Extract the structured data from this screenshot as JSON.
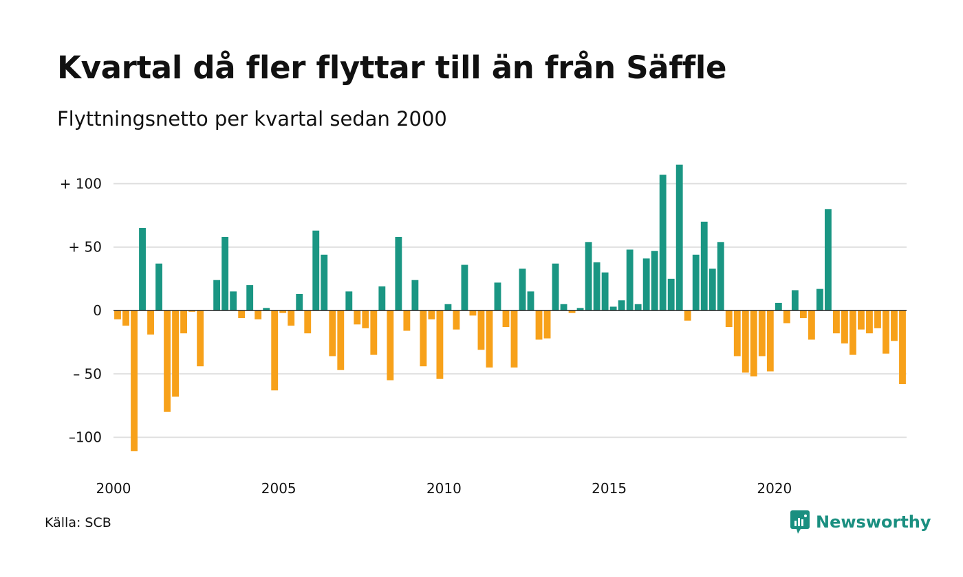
{
  "chart_data": {
    "type": "bar",
    "title": "Kvartal då fler flyttar till än från Säffle",
    "subtitle": "Flyttningsnetto per kvartal sedan 2000",
    "xlabel": "",
    "ylabel": "",
    "x_start": 2000,
    "x_period": "quarter",
    "xlim": [
      2000,
      2024
    ],
    "ylim": [
      -125,
      117
    ],
    "x_ticks": [
      2000,
      2005,
      2010,
      2015,
      2020
    ],
    "x_tick_labels": [
      "2000",
      "2005",
      "2010",
      "2015",
      "2020"
    ],
    "y_ticks": [
      100,
      50,
      0,
      -50,
      -100
    ],
    "y_tick_labels": [
      "+ 100",
      "+  50",
      "0",
      "– 50",
      "–100"
    ],
    "grid": true,
    "colors": {
      "positive": "#1a9683",
      "negative": "#f7a11a",
      "grid": "#dddddd",
      "zero_line": "#222222"
    },
    "values": [
      -7,
      -12,
      -111,
      65,
      -19,
      37,
      -80,
      -68,
      -18,
      -1,
      -44,
      0,
      24,
      58,
      15,
      -6,
      20,
      -7,
      2,
      -63,
      -2,
      -12,
      13,
      -18,
      63,
      44,
      -36,
      -47,
      15,
      -11,
      -14,
      -35,
      19,
      -55,
      58,
      -16,
      24,
      -44,
      -7,
      -54,
      5,
      -15,
      36,
      -4,
      -31,
      -45,
      22,
      -13,
      -45,
      33,
      15,
      -23,
      -22,
      37,
      5,
      -2,
      2,
      54,
      38,
      30,
      3,
      8,
      48,
      5,
      41,
      47,
      107,
      25,
      115,
      -8,
      44,
      70,
      33,
      54,
      -13,
      -36,
      -49,
      -52,
      -36,
      -48,
      6,
      -10,
      16,
      -6,
      -23,
      17,
      80,
      -18,
      -26,
      -35,
      -15,
      -18,
      -14,
      -34,
      -24,
      -58
    ]
  },
  "source": "Källa: SCB",
  "brand": {
    "name": "Newsworthy",
    "icon": "newsworthy-logo-icon",
    "color": "#1a8f80"
  }
}
